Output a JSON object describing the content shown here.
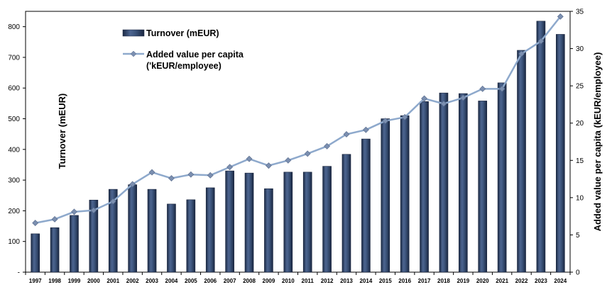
{
  "chart_data": {
    "type": "bar",
    "categories": [
      "1997",
      "1998",
      "1999",
      "2000",
      "2001",
      "2002",
      "2003",
      "2004",
      "2005",
      "2006",
      "2007",
      "2008",
      "2009",
      "2010",
      "2011",
      "2012",
      "2013",
      "2014",
      "2015",
      "2016",
      "2017",
      "2018",
      "2019",
      "2020",
      "2021",
      "2022",
      "2023",
      "2024"
    ],
    "series": [
      {
        "name": "Turnover (mEUR)",
        "type": "bar",
        "axis": "left",
        "color": "#3b5277",
        "values": [
          125,
          145,
          185,
          235,
          270,
          285,
          270,
          222,
          236,
          275,
          330,
          323,
          272,
          326,
          326,
          345,
          384,
          434,
          500,
          510,
          556,
          584,
          582,
          558,
          617,
          723,
          818,
          775
        ]
      },
      {
        "name": "Added value per capita ('kEUR/employee)",
        "legend_lines": [
          "Added value per capita",
          "('kEUR/employee)"
        ],
        "type": "line",
        "axis": "right",
        "color": "#8ea9cc",
        "marker_color": "#7b8fb0",
        "values": [
          6.6,
          7.1,
          8.1,
          8.3,
          9.5,
          11.8,
          13.4,
          12.6,
          13.1,
          13.0,
          14.1,
          15.2,
          14.3,
          15.0,
          15.9,
          16.9,
          18.5,
          19.1,
          20.3,
          20.8,
          23.3,
          22.6,
          23.4,
          24.6,
          24.6,
          29.3,
          31.0,
          34.3
        ]
      }
    ],
    "ylabel": "Turnover (mEUR)",
    "y2label": "Added value per capita (kEUR/employee)",
    "ylim": [
      0,
      850
    ],
    "y2lim": [
      0,
      35
    ],
    "yticks": [
      "-",
      "100",
      "200",
      "300",
      "400",
      "500",
      "600",
      "700",
      "800"
    ],
    "yticks_values": [
      0,
      100,
      200,
      300,
      400,
      500,
      600,
      700,
      800
    ],
    "y2ticks": [
      "0",
      "5",
      "10",
      "15",
      "20",
      "25",
      "30",
      "35"
    ],
    "y2ticks_values": [
      0,
      5,
      10,
      15,
      20,
      25,
      30,
      35
    ],
    "grid": false,
    "legend_position": "top-left"
  }
}
